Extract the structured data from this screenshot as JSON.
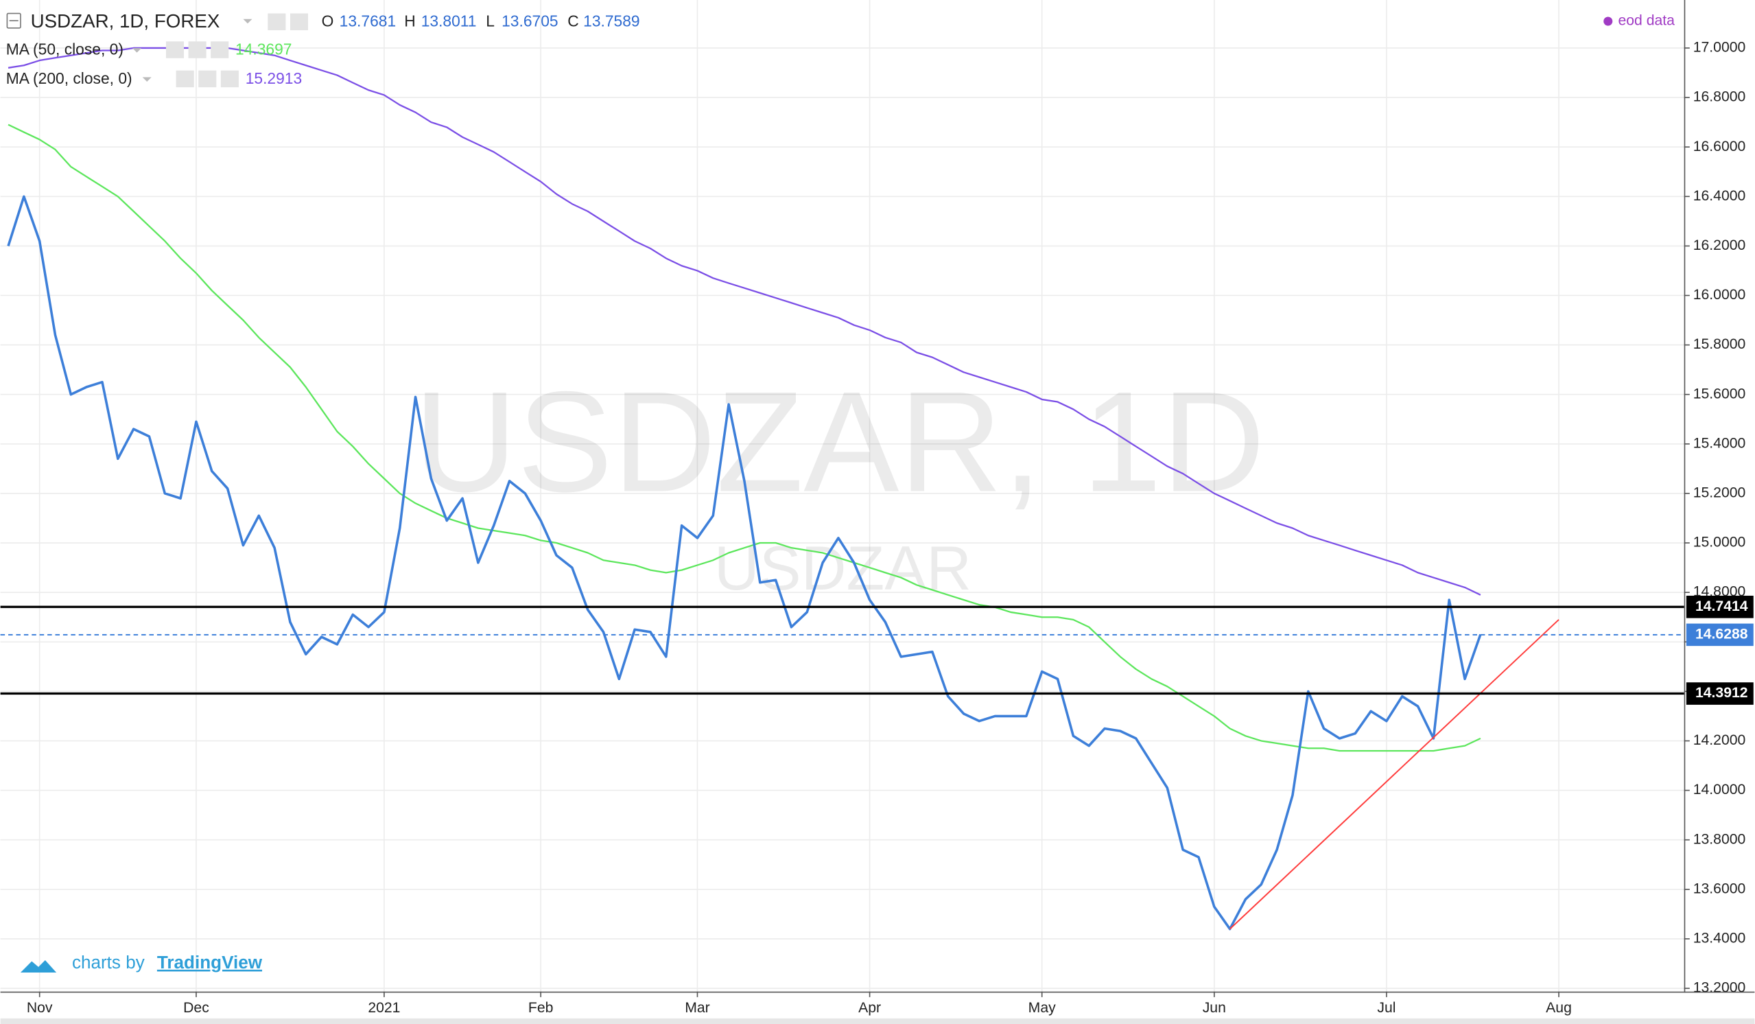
{
  "chart_data": {
    "type": "line",
    "title": "USDZAR, 1D, FOREX",
    "ohlc": [
      {
        "label": "O",
        "value": 13.7681
      },
      {
        "label": "H",
        "value": 13.8011
      },
      {
        "label": "L",
        "value": 13.6705
      },
      {
        "label": "C",
        "value": 13.7589
      }
    ],
    "source": "eod data",
    "watermark": "USDZAR, 1D",
    "watermark_sub": "USDZAR",
    "credit": "charts by",
    "brand": "TradingView",
    "categories": [
      null,
      null,
      "Nov",
      null,
      null,
      null,
      null,
      null,
      null,
      null,
      null,
      null,
      "Dec",
      null,
      null,
      null,
      null,
      null,
      null,
      null,
      null,
      null,
      null,
      null,
      "2021",
      null,
      null,
      null,
      null,
      null,
      null,
      null,
      null,
      null,
      "Feb",
      null,
      null,
      null,
      null,
      null,
      null,
      null,
      null,
      null,
      "Mar",
      null,
      null,
      null,
      null,
      null,
      null,
      null,
      null,
      null,
      null,
      "Apr",
      null,
      null,
      null,
      null,
      null,
      null,
      null,
      null,
      null,
      null,
      "May",
      null,
      null,
      null,
      null,
      null,
      null,
      null,
      null,
      null,
      null,
      "Jun",
      null,
      null,
      null,
      null,
      null,
      null,
      null,
      null,
      null,
      null,
      "Jul",
      null,
      null,
      null,
      null,
      null,
      null,
      null,
      null,
      null,
      null,
      "Aug"
    ],
    "series": [
      {
        "name": "USDZAR",
        "color": "#3d7fd9",
        "values": [
          16.2,
          16.4,
          16.22,
          15.84,
          15.6,
          15.63,
          15.65,
          15.34,
          15.46,
          15.43,
          15.2,
          15.18,
          15.49,
          15.29,
          15.22,
          14.99,
          15.11,
          14.98,
          14.68,
          14.55,
          14.62,
          14.59,
          14.71,
          14.66,
          14.72,
          15.06,
          15.59,
          15.26,
          15.09,
          15.18,
          14.92,
          15.07,
          15.25,
          15.2,
          15.09,
          14.95,
          14.9,
          14.73,
          14.64,
          14.45,
          14.65,
          14.64,
          14.54,
          15.07,
          15.02,
          15.11,
          15.56,
          15.25,
          14.84,
          14.85,
          14.66,
          14.72,
          14.92,
          15.02,
          14.92,
          14.77,
          14.68,
          14.54,
          14.55,
          14.56,
          14.38,
          14.31,
          14.28,
          14.3,
          14.3,
          14.3,
          14.48,
          14.45,
          14.22,
          14.18,
          14.25,
          14.24,
          14.21,
          14.11,
          14.01,
          13.76,
          13.73,
          13.53,
          13.44,
          13.56,
          13.62,
          13.76,
          13.98,
          14.4,
          14.25,
          14.21,
          14.23,
          14.32,
          14.28,
          14.38,
          14.34,
          14.21,
          14.77,
          14.45,
          14.63,
          null,
          null,
          null,
          null,
          null
        ]
      },
      {
        "name": "MA (50, close, 0)",
        "legend_value": 14.3697,
        "color": "#5ce65c",
        "values": [
          16.69,
          16.66,
          16.63,
          16.59,
          16.52,
          16.48,
          16.44,
          16.4,
          16.34,
          16.28,
          16.22,
          16.15,
          16.09,
          16.02,
          15.96,
          15.9,
          15.83,
          15.77,
          15.71,
          15.63,
          15.54,
          15.45,
          15.39,
          15.32,
          15.26,
          15.2,
          15.16,
          15.13,
          15.1,
          15.08,
          15.06,
          15.05,
          15.04,
          15.03,
          15.01,
          15.0,
          14.98,
          14.96,
          14.93,
          14.92,
          14.91,
          14.89,
          14.88,
          14.89,
          14.91,
          14.93,
          14.96,
          14.98,
          15.0,
          15.0,
          14.98,
          14.97,
          14.96,
          14.94,
          14.92,
          14.9,
          14.88,
          14.86,
          14.83,
          14.81,
          14.79,
          14.77,
          14.75,
          14.74,
          14.72,
          14.71,
          14.7,
          14.7,
          14.69,
          14.66,
          14.6,
          14.54,
          14.49,
          14.45,
          14.42,
          14.38,
          14.34,
          14.3,
          14.25,
          14.22,
          14.2,
          14.19,
          14.18,
          14.17,
          14.17,
          14.16,
          14.16,
          14.16,
          14.16,
          14.16,
          14.16,
          14.16,
          14.17,
          14.18,
          14.21,
          null,
          null,
          null,
          null,
          null
        ]
      },
      {
        "name": "MA (200, close, 0)",
        "legend_value": 15.2913,
        "color": "#7b4fe6",
        "values": [
          16.92,
          16.93,
          16.95,
          16.96,
          16.97,
          16.98,
          16.99,
          16.99,
          17.0,
          17.0,
          17.0,
          17.0,
          17.0,
          17.0,
          17.0,
          16.99,
          16.98,
          16.97,
          16.95,
          16.93,
          16.91,
          16.89,
          16.86,
          16.83,
          16.81,
          16.77,
          16.74,
          16.7,
          16.68,
          16.64,
          16.61,
          16.58,
          16.54,
          16.5,
          16.46,
          16.41,
          16.37,
          16.34,
          16.3,
          16.26,
          16.22,
          16.19,
          16.15,
          16.12,
          16.1,
          16.07,
          16.05,
          16.03,
          16.01,
          15.99,
          15.97,
          15.95,
          15.93,
          15.91,
          15.88,
          15.86,
          15.83,
          15.81,
          15.77,
          15.75,
          15.72,
          15.69,
          15.67,
          15.65,
          15.63,
          15.61,
          15.58,
          15.57,
          15.54,
          15.5,
          15.47,
          15.43,
          15.39,
          15.35,
          15.31,
          15.28,
          15.24,
          15.2,
          15.17,
          15.14,
          15.11,
          15.08,
          15.06,
          15.03,
          15.01,
          14.99,
          14.97,
          14.95,
          14.93,
          14.91,
          14.88,
          14.86,
          14.84,
          14.82,
          14.79,
          null,
          null,
          null,
          null,
          null
        ]
      }
    ],
    "levels": [
      {
        "value": 14.7414,
        "color": "#000000",
        "style": "solid"
      },
      {
        "value": 14.6288,
        "color": "#3d7fd9",
        "style": "dashed"
      },
      {
        "value": 14.3912,
        "color": "#000000",
        "style": "solid"
      }
    ],
    "trend_line": {
      "from": [
        78,
        13.44
      ],
      "to": [
        99,
        14.69
      ],
      "color": "#ff3b3b"
    },
    "ylim": [
      13.187,
      17.194
    ],
    "yticks": [
      {
        "value": 13.2,
        "label": "13.2000"
      },
      {
        "value": 13.4,
        "label": "13.4000"
      },
      {
        "value": 13.6,
        "label": "13.6000"
      },
      {
        "value": 13.8,
        "label": "13.8000"
      },
      {
        "value": 14.0,
        "label": "14.0000"
      },
      {
        "value": 14.2,
        "label": "14.2000"
      },
      {
        "value": 14.4,
        "label": "14.4000"
      },
      {
        "value": 14.6,
        "label": "14.6000"
      },
      {
        "value": 14.8,
        "label": "14.8000"
      },
      {
        "value": 15.0,
        "label": "15.0000"
      },
      {
        "value": 15.2,
        "label": "15.2000"
      },
      {
        "value": 15.4,
        "label": "15.4000"
      },
      {
        "value": 15.6,
        "label": "15.6000"
      },
      {
        "value": 15.8,
        "label": "15.8000"
      },
      {
        "value": 16.0,
        "label": "16.0000"
      },
      {
        "value": 16.2,
        "label": "16.2000"
      },
      {
        "value": 16.4,
        "label": "16.4000"
      },
      {
        "value": 16.6,
        "label": "16.6000"
      },
      {
        "value": 16.8,
        "label": "16.8000"
      },
      {
        "value": 17.0,
        "label": "17.0000"
      }
    ],
    "grid": true
  }
}
